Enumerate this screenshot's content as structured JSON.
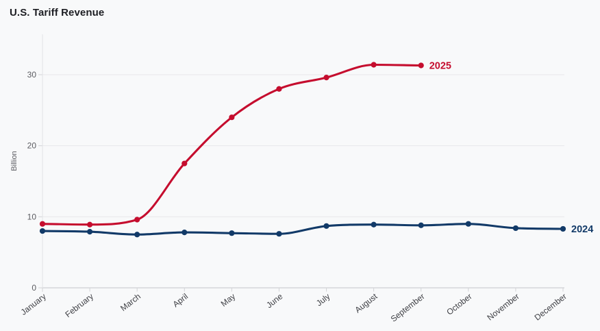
{
  "page": {
    "title": "U.S. Tariff Revenue"
  },
  "chart_data": {
    "type": "line",
    "title": "U.S. Tariff Revenue",
    "xlabel": "",
    "ylabel": "Billion",
    "categories": [
      "January",
      "February",
      "March",
      "April",
      "May",
      "June",
      "July",
      "August",
      "September",
      "October",
      "November",
      "December"
    ],
    "y_ticks": [
      0,
      10,
      20,
      30
    ],
    "ylim": [
      0,
      35.5
    ],
    "grid": true,
    "line_style": "smooth-monotone",
    "legend_position": "inline-end-of-line",
    "series": [
      {
        "name": "2024",
        "color": "#123a68",
        "values": [
          8.0,
          7.9,
          7.5,
          7.8,
          7.7,
          7.6,
          8.7,
          8.9,
          8.8,
          9.0,
          8.4,
          8.3
        ]
      },
      {
        "name": "2025",
        "color": "#c50d2e",
        "values": [
          9.0,
          8.9,
          9.6,
          17.5,
          24.0,
          28.0,
          29.6,
          31.4,
          31.3
        ]
      }
    ]
  },
  "colors": {
    "background": "#f8f9fa",
    "grid_line": "#e7e8ea",
    "axis_line": "#e2e3e6",
    "baseline": "#cfd0d4",
    "tick_mark": "#d2d3d6",
    "tick_text": "#5b5c61",
    "month_text": "#3e3f44",
    "title_text": "#1d1e23",
    "series_2025": "#c50d2e",
    "series_2024": "#123a68"
  }
}
